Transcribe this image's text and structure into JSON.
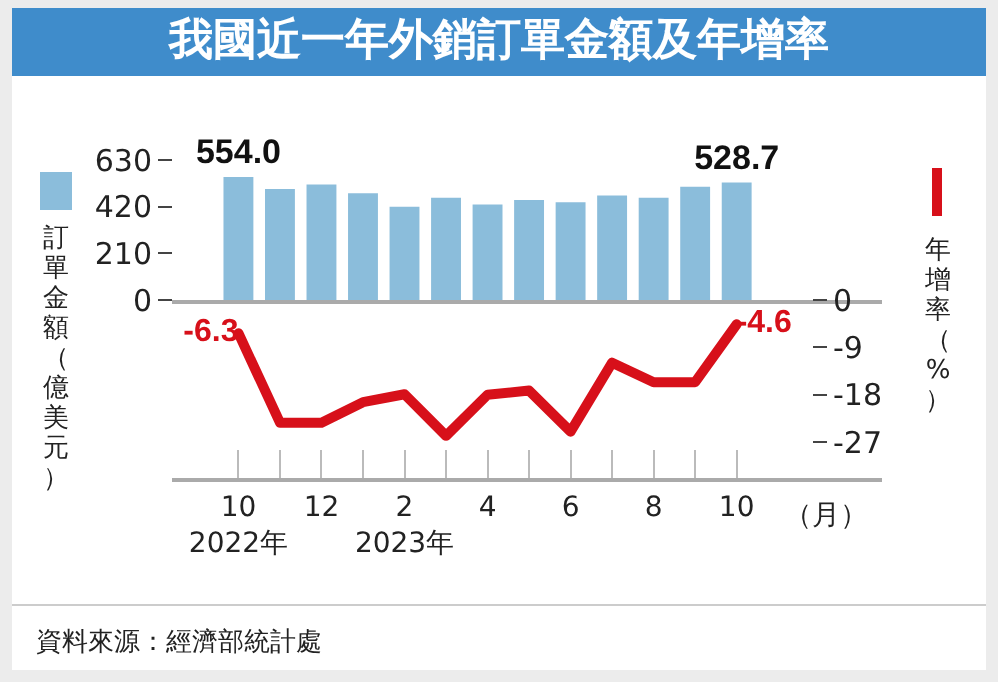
{
  "chart_data": [
    {
      "type": "bar",
      "title": "我國近一年外銷訂單金額及年增率",
      "ylabel": "訂單金額（億美元）",
      "categories": [
        null,
        null,
        null,
        null,
        null,
        null,
        null,
        null,
        null,
        null,
        null,
        null,
        null
      ],
      "series": [
        {
          "color": "#8bbddb",
          "values": [
            554.0,
            500,
            520,
            480,
            420,
            460,
            430,
            450,
            440,
            470,
            460,
            510,
            528.7
          ],
          "value_labels": [
            "554.0",
            null,
            null,
            null,
            null,
            null,
            null,
            null,
            null,
            null,
            null,
            null,
            "528.7"
          ]
        }
      ],
      "ylim": [
        0,
        630
      ],
      "yticks": [
        0,
        210,
        420,
        630
      ],
      "tick_labels": "y",
      "grid": false,
      "legend": false
    },
    {
      "type": "line",
      "ylabel": "年增率（%）",
      "xlabel": "（月）",
      "categories": [
        "10\n2022年",
        null,
        "12",
        null,
        "2\n2023年",
        null,
        "4",
        null,
        "6",
        null,
        "8",
        null,
        "10"
      ],
      "series": [
        {
          "color": "#d7101a",
          "values": [
            -6.3,
            -23.3,
            -23.3,
            -19.4,
            -17.9,
            -25.8,
            -18,
            -17.2,
            -25.0,
            -11.9,
            -15.6,
            -15.6,
            -4.6
          ],
          "value_labels": [
            "-6.3",
            null,
            null,
            null,
            null,
            null,
            null,
            null,
            null,
            null,
            null,
            null,
            "-4.6"
          ]
        }
      ],
      "ylim": [
        -33.8,
        0
      ],
      "yticks": [
        0,
        -9,
        -18,
        -27
      ],
      "grid": false,
      "legend": false,
      "marker": "none",
      "line_style": "solid",
      "annotations": [
        "資料來源：經濟部統計處"
      ]
    }
  ]
}
